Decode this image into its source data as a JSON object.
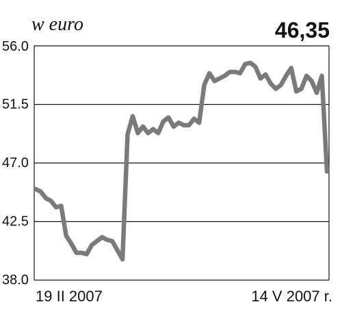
{
  "header": {
    "unit_label": "w euro",
    "last_value": "46,35"
  },
  "chart_data": {
    "type": "line",
    "title": "",
    "xlabel": "",
    "ylabel": "w euro",
    "ylim": [
      38.0,
      56.0
    ],
    "y_ticks": [
      56.0,
      51.5,
      47.0,
      42.5,
      38.0
    ],
    "y_tick_labels": [
      "56.0",
      "51.5",
      "47.0",
      "42.5",
      "38.0"
    ],
    "x_start_label": "19 II 2007",
    "x_end_label": "14 V 2007 r.",
    "grid": true,
    "legend": "none",
    "series_color": "#7a7a7a",
    "series": [
      {
        "values": [
          45.0,
          44.8,
          44.3,
          44.1,
          43.6,
          43.7,
          41.4,
          40.8,
          40.1,
          40.1,
          40.0,
          40.7,
          41.0,
          41.3,
          41.1,
          41.0,
          40.3,
          39.6,
          49.2,
          50.6,
          49.3,
          49.8,
          49.3,
          49.6,
          49.3,
          50.2,
          50.5,
          49.8,
          50.1,
          49.9,
          49.9,
          50.4,
          50.1,
          53.0,
          53.9,
          53.3,
          53.5,
          53.7,
          54.0,
          54.0,
          53.9,
          54.6,
          54.7,
          54.4,
          53.5,
          53.8,
          53.1,
          52.7,
          53.0,
          53.7,
          54.3,
          52.5,
          52.7,
          53.7,
          53.3,
          52.4,
          53.7,
          46.35
        ]
      }
    ]
  }
}
